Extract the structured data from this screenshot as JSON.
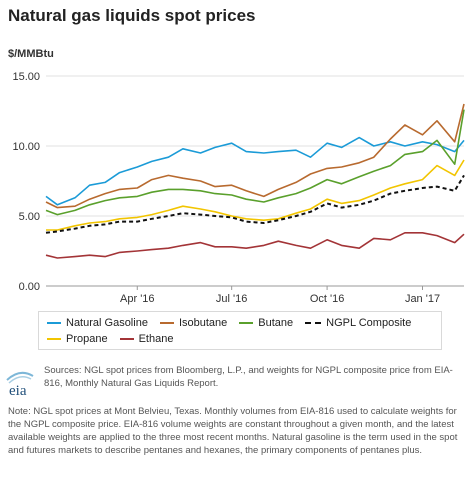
{
  "title": "Natural gas liquids spot prices",
  "units": "$/MMBtu",
  "chart_data": {
    "type": "line",
    "ylabel": "$/MMBtu",
    "ylim": [
      0,
      15
    ],
    "yticks": [
      "0.00",
      "5.00",
      "10.00",
      "15.00"
    ],
    "xrange": [
      "2016-01-04",
      "2017-02-10"
    ],
    "xticks": [
      {
        "label": "Apr '16",
        "date": "2016-04-01"
      },
      {
        "label": "Jul '16",
        "date": "2016-07-01"
      },
      {
        "label": "Oct '16",
        "date": "2016-10-01"
      },
      {
        "label": "Jan '17",
        "date": "2017-01-01"
      }
    ],
    "grid": "horizontal",
    "legend": "bottom",
    "series": [
      {
        "name": "Natural Gasoline",
        "color": "#1b9bd7",
        "dash": false,
        "x": [
          "2016-01-04",
          "2016-01-15",
          "2016-02-01",
          "2016-02-15",
          "2016-03-01",
          "2016-03-15",
          "2016-04-01",
          "2016-04-15",
          "2016-05-01",
          "2016-05-15",
          "2016-06-01",
          "2016-06-15",
          "2016-07-01",
          "2016-07-15",
          "2016-08-01",
          "2016-08-15",
          "2016-09-01",
          "2016-09-15",
          "2016-10-01",
          "2016-10-15",
          "2016-11-01",
          "2016-11-15",
          "2016-12-01",
          "2016-12-15",
          "2017-01-01",
          "2017-01-15",
          "2017-02-01",
          "2017-02-10"
        ],
        "values": [
          6.4,
          5.8,
          6.3,
          7.2,
          7.4,
          8.1,
          8.5,
          8.9,
          9.2,
          9.8,
          9.5,
          9.9,
          10.2,
          9.6,
          9.5,
          9.6,
          9.7,
          9.2,
          10.2,
          9.9,
          10.6,
          10.0,
          10.3,
          10.0,
          10.3,
          10.1,
          9.6,
          10.4
        ]
      },
      {
        "name": "Isobutane",
        "color": "#b86a2f",
        "dash": false,
        "x": [
          "2016-01-04",
          "2016-01-15",
          "2016-02-01",
          "2016-02-15",
          "2016-03-01",
          "2016-03-15",
          "2016-04-01",
          "2016-04-15",
          "2016-05-01",
          "2016-05-15",
          "2016-06-01",
          "2016-06-15",
          "2016-07-01",
          "2016-07-15",
          "2016-08-01",
          "2016-08-15",
          "2016-09-01",
          "2016-09-15",
          "2016-10-01",
          "2016-10-15",
          "2016-11-01",
          "2016-11-15",
          "2016-12-01",
          "2016-12-15",
          "2017-01-01",
          "2017-01-15",
          "2017-02-01",
          "2017-02-10"
        ],
        "values": [
          6.0,
          5.6,
          5.7,
          6.2,
          6.6,
          6.9,
          7.0,
          7.6,
          7.9,
          7.7,
          7.5,
          7.1,
          7.2,
          6.8,
          6.4,
          6.9,
          7.4,
          8.0,
          8.4,
          8.5,
          8.8,
          9.2,
          10.5,
          11.5,
          10.8,
          11.8,
          10.3,
          13.0
        ]
      },
      {
        "name": "Butane",
        "color": "#5aa02c",
        "dash": false,
        "x": [
          "2016-01-04",
          "2016-01-15",
          "2016-02-01",
          "2016-02-15",
          "2016-03-01",
          "2016-03-15",
          "2016-04-01",
          "2016-04-15",
          "2016-05-01",
          "2016-05-15",
          "2016-06-01",
          "2016-06-15",
          "2016-07-01",
          "2016-07-15",
          "2016-08-01",
          "2016-08-15",
          "2016-09-01",
          "2016-09-15",
          "2016-10-01",
          "2016-10-15",
          "2016-11-01",
          "2016-11-15",
          "2016-12-01",
          "2016-12-15",
          "2017-01-01",
          "2017-01-15",
          "2017-02-01",
          "2017-02-10"
        ],
        "values": [
          5.4,
          5.1,
          5.4,
          5.8,
          6.1,
          6.3,
          6.4,
          6.7,
          6.9,
          6.9,
          6.8,
          6.6,
          6.5,
          6.2,
          6.0,
          6.3,
          6.6,
          7.0,
          7.6,
          7.3,
          7.8,
          8.2,
          8.6,
          9.4,
          9.6,
          10.4,
          8.7,
          12.6
        ]
      },
      {
        "name": "NGPL Composite",
        "color": "#111111",
        "dash": true,
        "x": [
          "2016-01-04",
          "2016-01-15",
          "2016-02-01",
          "2016-02-15",
          "2016-03-01",
          "2016-03-15",
          "2016-04-01",
          "2016-04-15",
          "2016-05-01",
          "2016-05-15",
          "2016-06-01",
          "2016-06-15",
          "2016-07-01",
          "2016-07-15",
          "2016-08-01",
          "2016-08-15",
          "2016-09-01",
          "2016-09-15",
          "2016-10-01",
          "2016-10-15",
          "2016-11-01",
          "2016-11-15",
          "2016-12-01",
          "2016-12-15",
          "2017-01-01",
          "2017-01-15",
          "2017-02-01",
          "2017-02-10"
        ],
        "values": [
          3.8,
          3.9,
          4.1,
          4.3,
          4.4,
          4.6,
          4.6,
          4.8,
          5.0,
          5.2,
          5.1,
          5.0,
          4.9,
          4.6,
          4.5,
          4.7,
          5.0,
          5.3,
          5.9,
          5.6,
          5.8,
          6.1,
          6.6,
          6.8,
          7.0,
          7.1,
          6.8,
          7.9
        ]
      },
      {
        "name": "Propane",
        "color": "#f2c500",
        "dash": false,
        "x": [
          "2016-01-04",
          "2016-01-15",
          "2016-02-01",
          "2016-02-15",
          "2016-03-01",
          "2016-03-15",
          "2016-04-01",
          "2016-04-15",
          "2016-05-01",
          "2016-05-15",
          "2016-06-01",
          "2016-06-15",
          "2016-07-01",
          "2016-07-15",
          "2016-08-01",
          "2016-08-15",
          "2016-09-01",
          "2016-09-15",
          "2016-10-01",
          "2016-10-15",
          "2016-11-01",
          "2016-11-15",
          "2016-12-01",
          "2016-12-15",
          "2017-01-01",
          "2017-01-15",
          "2017-02-01",
          "2017-02-10"
        ],
        "values": [
          4.0,
          4.0,
          4.3,
          4.5,
          4.6,
          4.8,
          4.9,
          5.1,
          5.4,
          5.7,
          5.5,
          5.3,
          5.0,
          4.8,
          4.7,
          4.8,
          5.2,
          5.5,
          6.2,
          5.9,
          6.1,
          6.5,
          7.0,
          7.3,
          7.6,
          8.6,
          7.9,
          9.0
        ]
      },
      {
        "name": "Ethane",
        "color": "#a33437",
        "dash": false,
        "x": [
          "2016-01-04",
          "2016-01-15",
          "2016-02-01",
          "2016-02-15",
          "2016-03-01",
          "2016-03-15",
          "2016-04-01",
          "2016-04-15",
          "2016-05-01",
          "2016-05-15",
          "2016-06-01",
          "2016-06-15",
          "2016-07-01",
          "2016-07-15",
          "2016-08-01",
          "2016-08-15",
          "2016-09-01",
          "2016-09-15",
          "2016-10-01",
          "2016-10-15",
          "2016-11-01",
          "2016-11-15",
          "2016-12-01",
          "2016-12-15",
          "2017-01-01",
          "2017-01-15",
          "2017-02-01",
          "2017-02-10"
        ],
        "values": [
          2.2,
          2.0,
          2.1,
          2.2,
          2.1,
          2.4,
          2.5,
          2.6,
          2.7,
          2.9,
          3.1,
          2.8,
          2.8,
          2.7,
          2.9,
          3.2,
          2.9,
          2.7,
          3.3,
          2.9,
          2.7,
          3.4,
          3.3,
          3.8,
          3.8,
          3.6,
          3.1,
          3.7
        ]
      }
    ]
  },
  "legend_rows": [
    [
      {
        "key": 0
      },
      {
        "key": 1
      },
      {
        "key": 2
      },
      {
        "key": 3
      }
    ],
    [
      {
        "key": 4
      },
      {
        "key": 5
      }
    ]
  ],
  "source": "Sources: NGL spot prices from Bloomberg, L.P., and weights for NGPL composite price from EIA-816, Monthly Natural Gas Liquids Report.",
  "note": "Note: NGL spot prices at Mont Belvieu, Texas. Monthly volumes from EIA-816 used to calculate weights for the NGPL composite price. EIA-816 volume weights are constant throughout a given month, and the latest available weights are applied to the three most recent months. Natural gasoline is the term used in the spot and futures markets to describe pentanes and hexanes, the primary components of pentanes plus.",
  "logo_text": "eia"
}
